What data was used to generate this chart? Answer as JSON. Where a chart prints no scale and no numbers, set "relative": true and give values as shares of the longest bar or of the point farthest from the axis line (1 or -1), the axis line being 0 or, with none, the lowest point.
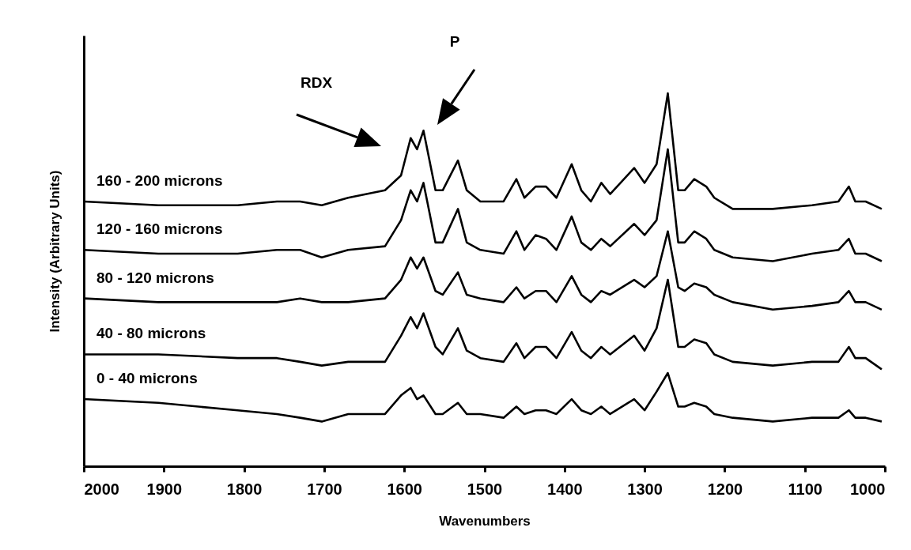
{
  "chart_data": {
    "type": "line",
    "relative": true,
    "xlabel": "Wavenumbers",
    "ylabel": "Intensity (Arbitrary Units)",
    "xlim": [
      2000,
      1000
    ],
    "xticks": [
      2000,
      1900,
      1800,
      1700,
      1600,
      1500,
      1400,
      1300,
      1200,
      1100,
      1000
    ],
    "x": [
      2000,
      1907,
      1808,
      1759,
      1730,
      1703,
      1670,
      1624,
      1604,
      1592,
      1584,
      1576,
      1561,
      1552,
      1533,
      1522,
      1505,
      1476,
      1460,
      1450,
      1436,
      1423,
      1410,
      1391,
      1379,
      1367,
      1354,
      1343,
      1313,
      1300,
      1285,
      1271,
      1258,
      1250,
      1238,
      1223,
      1213,
      1190,
      1140,
      1091,
      1058,
      1045,
      1037,
      1024,
      1004
    ],
    "series": [
      {
        "name": "160 - 200 microns",
        "color": "#000000",
        "values": [
          0.71,
          0.7,
          0.7,
          0.71,
          0.71,
          0.7,
          0.72,
          0.74,
          0.78,
          0.88,
          0.85,
          0.9,
          0.74,
          0.74,
          0.82,
          0.74,
          0.71,
          0.71,
          0.77,
          0.72,
          0.75,
          0.75,
          0.72,
          0.81,
          0.74,
          0.71,
          0.76,
          0.73,
          0.8,
          0.76,
          0.81,
          1,
          0.74,
          0.74,
          0.77,
          0.75,
          0.72,
          0.69,
          0.69,
          0.7,
          0.71,
          0.75,
          0.71,
          0.71,
          0.69
        ]
      },
      {
        "name": "120 - 160 microns",
        "color": "#000000",
        "values": [
          0.58,
          0.57,
          0.57,
          0.58,
          0.58,
          0.56,
          0.58,
          0.59,
          0.66,
          0.74,
          0.71,
          0.76,
          0.6,
          0.6,
          0.69,
          0.6,
          0.58,
          0.57,
          0.63,
          0.58,
          0.62,
          0.61,
          0.58,
          0.67,
          0.6,
          0.58,
          0.61,
          0.59,
          0.65,
          0.62,
          0.66,
          0.85,
          0.6,
          0.6,
          0.63,
          0.61,
          0.58,
          0.56,
          0.55,
          0.57,
          0.58,
          0.61,
          0.57,
          0.57,
          0.55
        ]
      },
      {
        "name": "80 - 120 microns",
        "color": "#000000",
        "values": [
          0.45,
          0.44,
          0.44,
          0.44,
          0.45,
          0.44,
          0.44,
          0.45,
          0.5,
          0.56,
          0.53,
          0.56,
          0.47,
          0.46,
          0.52,
          0.46,
          0.45,
          0.44,
          0.48,
          0.45,
          0.47,
          0.47,
          0.44,
          0.51,
          0.46,
          0.44,
          0.47,
          0.46,
          0.5,
          0.48,
          0.51,
          0.63,
          0.48,
          0.47,
          0.49,
          0.48,
          0.46,
          0.44,
          0.42,
          0.43,
          0.44,
          0.47,
          0.44,
          0.44,
          0.42
        ]
      },
      {
        "name": "40 - 80 microns",
        "color": "#000000",
        "values": [
          0.3,
          0.3,
          0.29,
          0.29,
          0.28,
          0.27,
          0.28,
          0.28,
          0.35,
          0.4,
          0.37,
          0.41,
          0.32,
          0.3,
          0.37,
          0.31,
          0.29,
          0.28,
          0.33,
          0.29,
          0.32,
          0.32,
          0.29,
          0.36,
          0.31,
          0.29,
          0.32,
          0.3,
          0.35,
          0.31,
          0.37,
          0.5,
          0.32,
          0.32,
          0.34,
          0.33,
          0.3,
          0.28,
          0.27,
          0.28,
          0.28,
          0.32,
          0.29,
          0.29,
          0.26
        ]
      },
      {
        "name": "0 - 40 microns",
        "color": "#000000",
        "values": [
          0.18,
          0.17,
          0.15,
          0.14,
          0.13,
          0.12,
          0.14,
          0.14,
          0.19,
          0.21,
          0.18,
          0.19,
          0.14,
          0.14,
          0.17,
          0.14,
          0.14,
          0.13,
          0.16,
          0.14,
          0.15,
          0.15,
          0.14,
          0.18,
          0.15,
          0.14,
          0.16,
          0.14,
          0.18,
          0.15,
          0.2,
          0.25,
          0.16,
          0.16,
          0.17,
          0.16,
          0.14,
          0.13,
          0.12,
          0.13,
          0.13,
          0.15,
          0.13,
          0.13,
          0.12
        ]
      }
    ],
    "annotations": [
      "RDX",
      "P"
    ]
  }
}
